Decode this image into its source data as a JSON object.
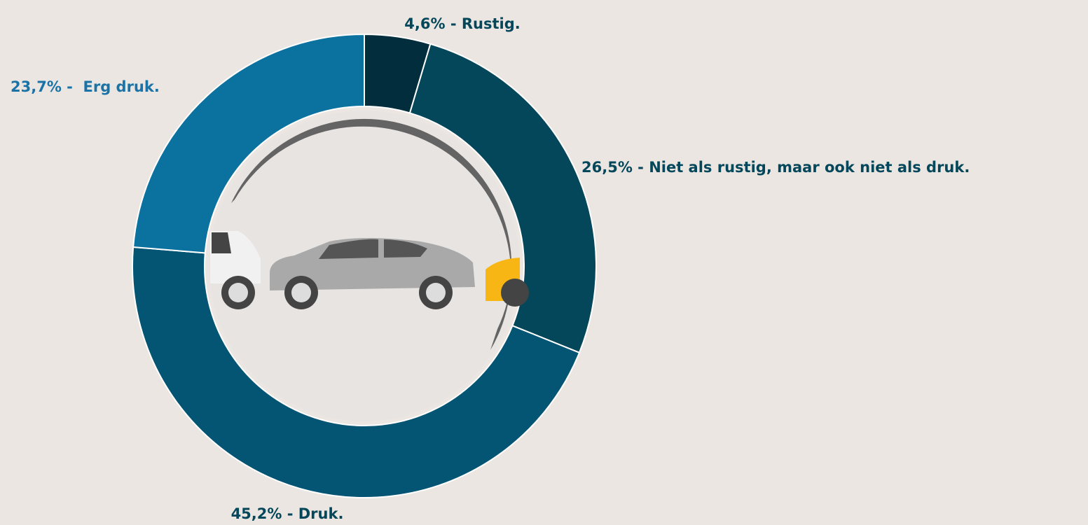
{
  "chart_data": {
    "type": "pie",
    "values": [
      4.6,
      26.5,
      45.2,
      23.7
    ],
    "value_labels": [
      "4,6% - Rustig.",
      "26,5% - Niet als rustig, maar ook niet als druk.",
      "45,2% - Druk.",
      "23,7% -  Erg druk."
    ],
    "colors": [
      "#022d3c",
      "#05475a",
      "#045473",
      "#0b72a0"
    ],
    "label_colors": [
      "#05475a",
      "#05475a",
      "#05475a",
      "#1a73a6"
    ]
  }
}
